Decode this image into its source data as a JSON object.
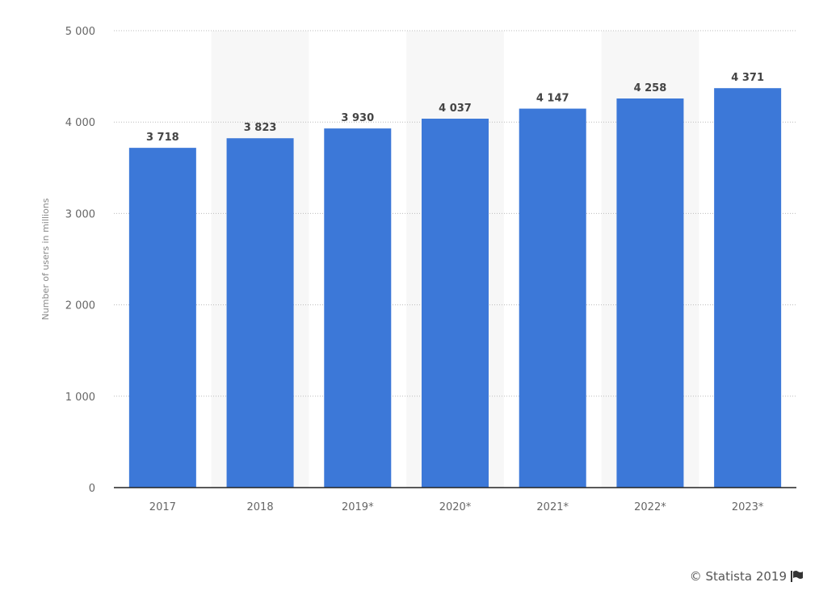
{
  "chart_data": {
    "type": "bar",
    "title": "",
    "xlabel": "",
    "ylabel": "Number of users in millions",
    "categories": [
      "2017",
      "2018",
      "2019*",
      "2020*",
      "2021*",
      "2022*",
      "2023*"
    ],
    "values": [
      3718,
      3823,
      3930,
      4037,
      4147,
      4258,
      4371
    ],
    "value_labels": [
      "3 718",
      "3 823",
      "3 930",
      "4 037",
      "4 147",
      "4 258",
      "4 371"
    ],
    "ylim": [
      0,
      5000
    ],
    "yticks": [
      0,
      1000,
      2000,
      3000,
      4000,
      5000
    ],
    "ytick_labels": [
      "0",
      "1 000",
      "2 000",
      "3 000",
      "4 000",
      "5 000"
    ],
    "grid": true,
    "bar_color": "#3c78d8",
    "band_color": "#f7f7f7"
  },
  "footer": {
    "credit": "© Statista 2019",
    "icon": "flag-icon"
  }
}
